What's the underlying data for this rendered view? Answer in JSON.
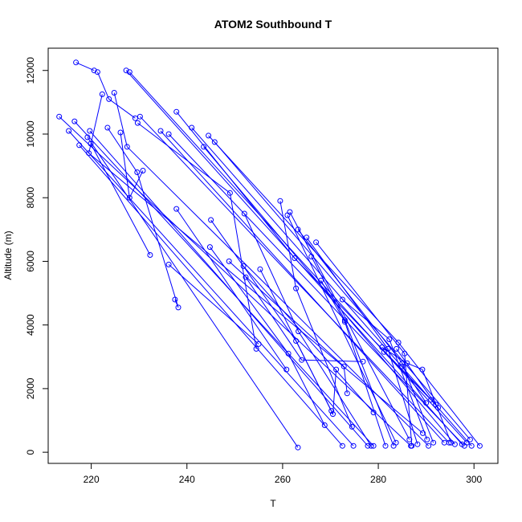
{
  "chart_data": {
    "type": "scatter",
    "title": "ATOM2 Southbound T",
    "xlabel": "T",
    "ylabel": "Altitude (m)",
    "xlim": [
      211,
      305
    ],
    "ylim": [
      -350,
      12700
    ],
    "x_ticks": [
      220,
      240,
      260,
      280,
      300
    ],
    "y_ticks": [
      0,
      2000,
      4000,
      6000,
      8000,
      10000,
      12000
    ],
    "grid": false,
    "legend": "none",
    "series_color": "#0000ff",
    "profiles": [
      {
        "points": [
          [
            216.8,
            12250
          ],
          [
            220.6,
            12000
          ]
        ]
      },
      {
        "points": [
          [
            221.3,
            11950
          ],
          [
            223.7,
            11100
          ],
          [
            229.2,
            10500
          ]
        ]
      },
      {
        "points": [
          [
            227.3,
            12000
          ],
          [
            297.5,
            250
          ]
        ]
      },
      {
        "points": [
          [
            228.0,
            11950
          ],
          [
            298.5,
            300
          ]
        ]
      },
      {
        "points": [
          [
            230.2,
            10550
          ],
          [
            294.8,
            300
          ]
        ]
      },
      {
        "points": [
          [
            222.3,
            11250
          ],
          [
            219.5,
            9400
          ],
          [
            289.3,
            600
          ]
        ]
      },
      {
        "points": [
          [
            224.8,
            11300
          ],
          [
            227.5,
            9600
          ],
          [
            290.5,
            200
          ]
        ]
      },
      {
        "points": [
          [
            213.3,
            10550
          ],
          [
            286.8,
            200
          ]
        ]
      },
      {
        "points": [
          [
            216.5,
            10400
          ],
          [
            279.0,
            200
          ]
        ]
      },
      {
        "points": [
          [
            215.3,
            10100
          ],
          [
            274.8,
            200
          ]
        ]
      },
      {
        "points": [
          [
            219.7,
            10100
          ],
          [
            277.8,
            200
          ]
        ]
      },
      {
        "points": [
          [
            217.5,
            9650
          ],
          [
            272.5,
            200
          ]
        ]
      },
      {
        "points": [
          [
            219.2,
            9900
          ],
          [
            263.2,
            150
          ]
        ]
      },
      {
        "points": [
          [
            219.9,
            9700
          ],
          [
            232.3,
            6200
          ]
        ]
      },
      {
        "points": [
          [
            223.4,
            10200
          ],
          [
            229.6,
            8800
          ],
          [
            238.2,
            4550
          ],
          [
            237.5,
            4800
          ]
        ]
      },
      {
        "points": [
          [
            226.1,
            10050
          ],
          [
            228.0,
            8000
          ],
          [
            230.8,
            8850
          ]
        ]
      },
      {
        "points": [
          [
            237.8,
            10700
          ],
          [
            262.5,
            6100
          ],
          [
            292.0,
            1500
          ]
        ]
      },
      {
        "points": [
          [
            241.0,
            10200
          ],
          [
            299.5,
            200
          ]
        ]
      },
      {
        "points": [
          [
            236.2,
            10000
          ],
          [
            298.0,
            200
          ]
        ]
      },
      {
        "points": [
          [
            234.5,
            10100
          ],
          [
            293.8,
            300
          ]
        ]
      },
      {
        "points": [
          [
            244.5,
            9950
          ],
          [
            284.2,
            3450
          ],
          [
            301.2,
            200
          ]
        ]
      },
      {
        "points": [
          [
            245.8,
            9750
          ],
          [
            299.2,
            400
          ]
        ]
      },
      {
        "points": [
          [
            243.5,
            9600
          ],
          [
            296.0,
            250
          ]
        ]
      },
      {
        "points": [
          [
            229.7,
            10350
          ],
          [
            249.0,
            8150
          ],
          [
            254.5,
            3250
          ]
        ]
      },
      {
        "points": [
          [
            237.8,
            7650
          ],
          [
            260.8,
            2600
          ]
        ]
      },
      {
        "points": [
          [
            236.2,
            5900
          ],
          [
            255.0,
            3400
          ]
        ]
      },
      {
        "points": [
          [
            245.0,
            7300
          ],
          [
            262.8,
            3500
          ],
          [
            270.2,
            1300
          ]
        ]
      },
      {
        "points": [
          [
            244.8,
            6450
          ],
          [
            261.2,
            3100
          ],
          [
            268.8,
            850
          ]
        ]
      },
      {
        "points": [
          [
            248.8,
            6000
          ],
          [
            272.8,
            2700
          ],
          [
            273.5,
            1850
          ]
        ]
      },
      {
        "points": [
          [
            251.8,
            5850
          ],
          [
            279.0,
            1250
          ]
        ]
      },
      {
        "points": [
          [
            252.3,
            5500
          ],
          [
            264.0,
            2900
          ],
          [
            276.8,
            2850
          ]
        ]
      },
      {
        "points": [
          [
            255.3,
            5750
          ],
          [
            270.5,
            1200
          ],
          [
            271.2,
            2600
          ]
        ]
      },
      {
        "points": [
          [
            252.0,
            7500
          ],
          [
            263.3,
            3800
          ],
          [
            278.5,
            200
          ]
        ]
      },
      {
        "points": [
          [
            259.5,
            7900
          ],
          [
            262.8,
            5150
          ],
          [
            274.5,
            800
          ]
        ]
      },
      {
        "points": [
          [
            261.0,
            7450
          ],
          [
            283.7,
            300
          ]
        ]
      },
      {
        "points": [
          [
            261.5,
            7550
          ],
          [
            286.5,
            400
          ]
        ]
      },
      {
        "points": [
          [
            263.2,
            7000
          ],
          [
            285.0,
            2800
          ],
          [
            291.5,
            300
          ]
        ]
      },
      {
        "points": [
          [
            265.0,
            6750
          ],
          [
            282.0,
            3250
          ],
          [
            288.2,
            250
          ]
        ]
      },
      {
        "points": [
          [
            267.0,
            6600
          ],
          [
            285.5,
            3100
          ],
          [
            287.0,
            200
          ]
        ]
      },
      {
        "points": [
          [
            266.0,
            6150
          ],
          [
            273.0,
            4150
          ],
          [
            283.2,
            200
          ]
        ]
      },
      {
        "points": [
          [
            268.0,
            5400
          ],
          [
            273.0,
            4100
          ],
          [
            281.5,
            200
          ]
        ]
      },
      {
        "points": [
          [
            272.5,
            4800
          ],
          [
            282.3,
            3550
          ],
          [
            290.2,
            400
          ]
        ]
      },
      {
        "points": [
          [
            280.8,
            3300
          ],
          [
            286.0,
            2800
          ],
          [
            289.2,
            2600
          ],
          [
            295.2,
            300
          ]
        ]
      },
      {
        "points": [
          [
            283.8,
            3250
          ],
          [
            292.5,
            1400
          ]
        ]
      },
      {
        "points": [
          [
            281.2,
            3150
          ],
          [
            291.0,
            1650
          ]
        ]
      },
      {
        "points": [
          [
            285.0,
            2700
          ],
          [
            290.0,
            1550
          ]
        ]
      }
    ]
  }
}
